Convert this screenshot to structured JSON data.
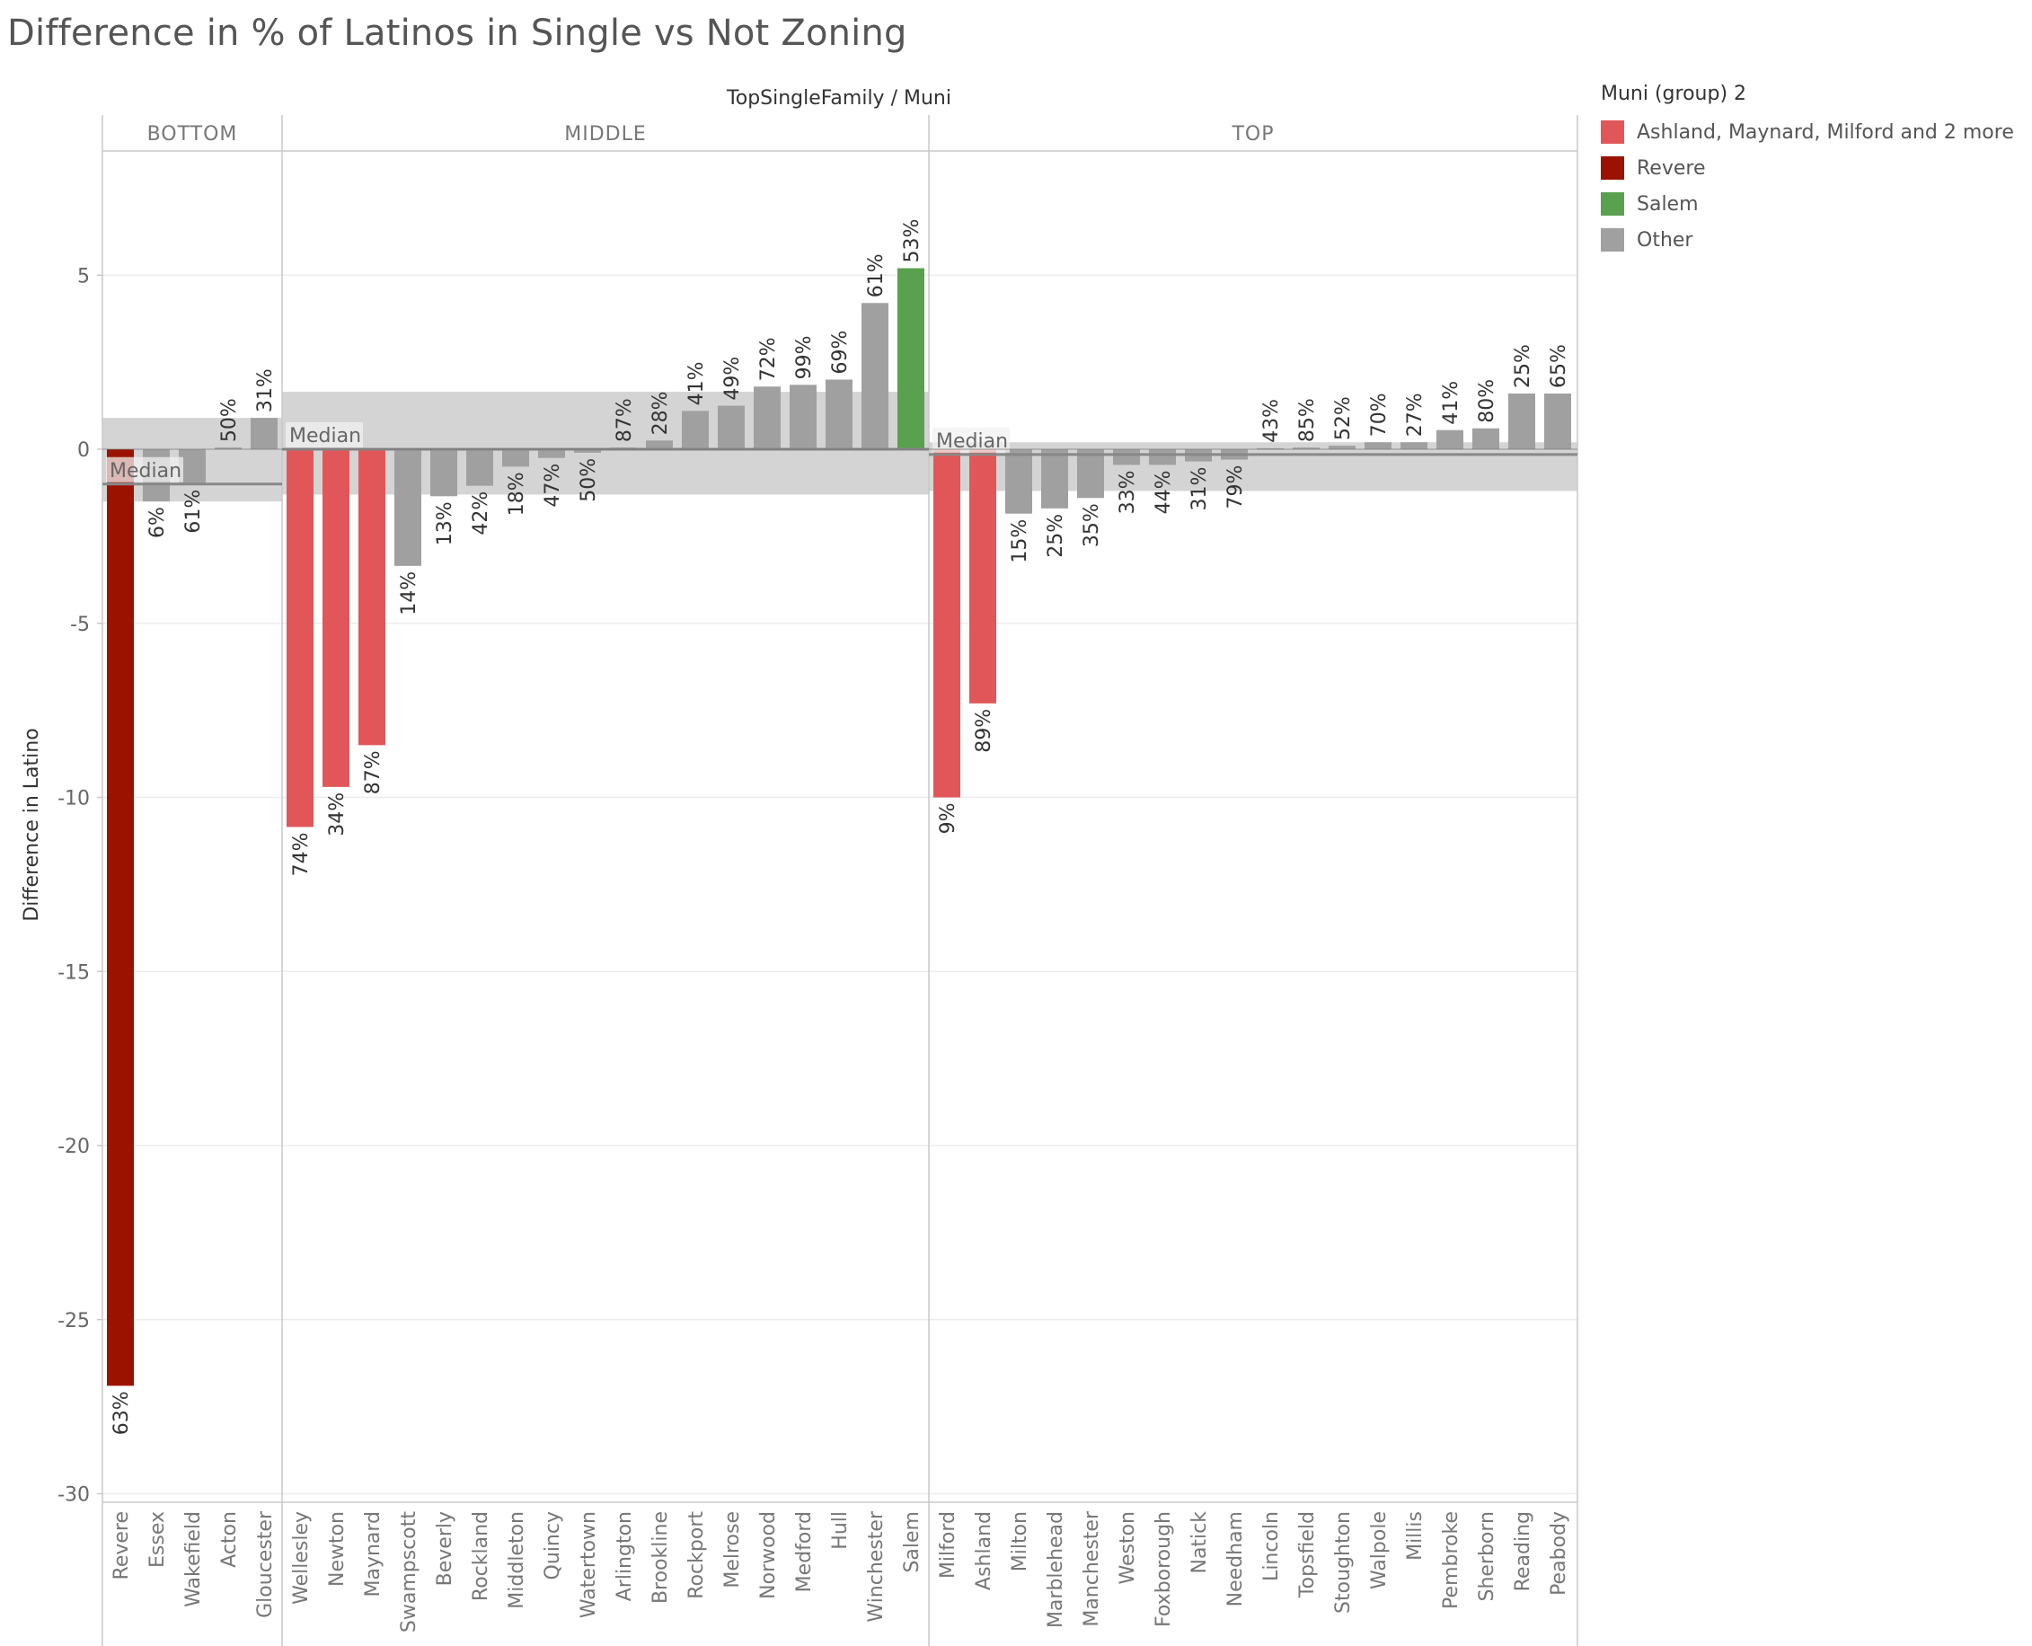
{
  "chart_data": {
    "type": "bar",
    "title": "Difference in % of Latinos in Single  vs Not Zoning",
    "column_header": "TopSingleFamily  /  Muni",
    "ylabel": "Difference in Latino",
    "ylim": [
      -30,
      8.5
    ],
    "yticks": [
      5,
      0,
      -5,
      -10,
      -15,
      -20,
      -25,
      -30
    ],
    "reference_label": "Median",
    "legend": {
      "title": "Muni (group) 2",
      "entries": [
        {
          "label": "Ashland, Maynard, Milford and 2 more",
          "color": "#e15759"
        },
        {
          "label": "Revere",
          "color": "#9c1200"
        },
        {
          "label": "Salem",
          "color": "#59a14f"
        },
        {
          "label": "Other",
          "color": "#a0a0a0"
        }
      ]
    },
    "panels": [
      {
        "name": "BOTTOM",
        "median": -1.0,
        "band": [
          -1.5,
          0.9
        ],
        "categories": [
          "Revere",
          "Essex",
          "Wakefield",
          "Acton",
          "Gloucester"
        ],
        "values": [
          -26.9,
          -1.5,
          -1.0,
          0.05,
          0.9
        ],
        "labels": [
          "63%",
          "6%",
          "61%",
          "50%",
          "31%"
        ],
        "groups": [
          "Revere",
          "Other",
          "Other",
          "Other",
          "Other"
        ]
      },
      {
        "name": "MIDDLE",
        "median": 0.0,
        "band": [
          -1.3,
          1.65
        ],
        "categories": [
          "Wellesley",
          "Newton",
          "Maynard",
          "Swampscott",
          "Beverly",
          "Rockland",
          "Middleton",
          "Quincy",
          "Watertown",
          "Arlington",
          "Brookline",
          "Rockport",
          "Melrose",
          "Norwood",
          "Medford",
          "Hull",
          "Winchester",
          "Salem"
        ],
        "values": [
          -10.85,
          -9.7,
          -8.5,
          -3.35,
          -1.35,
          -1.05,
          -0.5,
          -0.25,
          -0.1,
          0.05,
          0.25,
          1.1,
          1.25,
          1.8,
          1.85,
          2.0,
          4.2,
          5.2
        ],
        "labels": [
          "74%",
          "34%",
          "87%",
          "14%",
          "13%",
          "42%",
          "18%",
          "47%",
          "50%",
          "87%",
          "28%",
          "41%",
          "49%",
          "72%",
          "99%",
          "69%",
          "61%",
          "53%"
        ],
        "groups": [
          "Ashland, Maynard, Milford and 2 more",
          "Ashland, Maynard, Milford and 2 more",
          "Ashland, Maynard, Milford and 2 more",
          "Other",
          "Other",
          "Other",
          "Other",
          "Other",
          "Other",
          "Other",
          "Other",
          "Other",
          "Other",
          "Other",
          "Other",
          "Other",
          "Other",
          "Salem"
        ]
      },
      {
        "name": "TOP",
        "median": -0.15,
        "band": [
          -1.2,
          0.2
        ],
        "categories": [
          "Milford",
          "Ashland",
          "Milton",
          "Marblehead",
          "Manchester",
          "Weston",
          "Foxborough",
          "Natick",
          "Needham",
          "Lincoln",
          "Topsfield",
          "Stoughton",
          "Walpole",
          "Millis",
          "Pembroke",
          "Sherborn",
          "Reading",
          "Peabody"
        ],
        "values": [
          -10.0,
          -7.3,
          -1.85,
          -1.7,
          -1.4,
          -0.45,
          -0.45,
          -0.35,
          -0.3,
          0.03,
          0.05,
          0.1,
          0.2,
          0.2,
          0.55,
          0.6,
          1.6,
          1.6
        ],
        "labels": [
          "9%",
          "89%",
          "15%",
          "25%",
          "35%",
          "33%",
          "44%",
          "31%",
          "79%",
          "43%",
          "85%",
          "52%",
          "70%",
          "27%",
          "41%",
          "80%",
          "25%",
          "65%"
        ],
        "groups": [
          "Ashland, Maynard, Milford and 2 more",
          "Ashland, Maynard, Milford and 2 more",
          "Other",
          "Other",
          "Other",
          "Other",
          "Other",
          "Other",
          "Other",
          "Other",
          "Other",
          "Other",
          "Other",
          "Other",
          "Other",
          "Other",
          "Other",
          "Other"
        ]
      }
    ]
  }
}
